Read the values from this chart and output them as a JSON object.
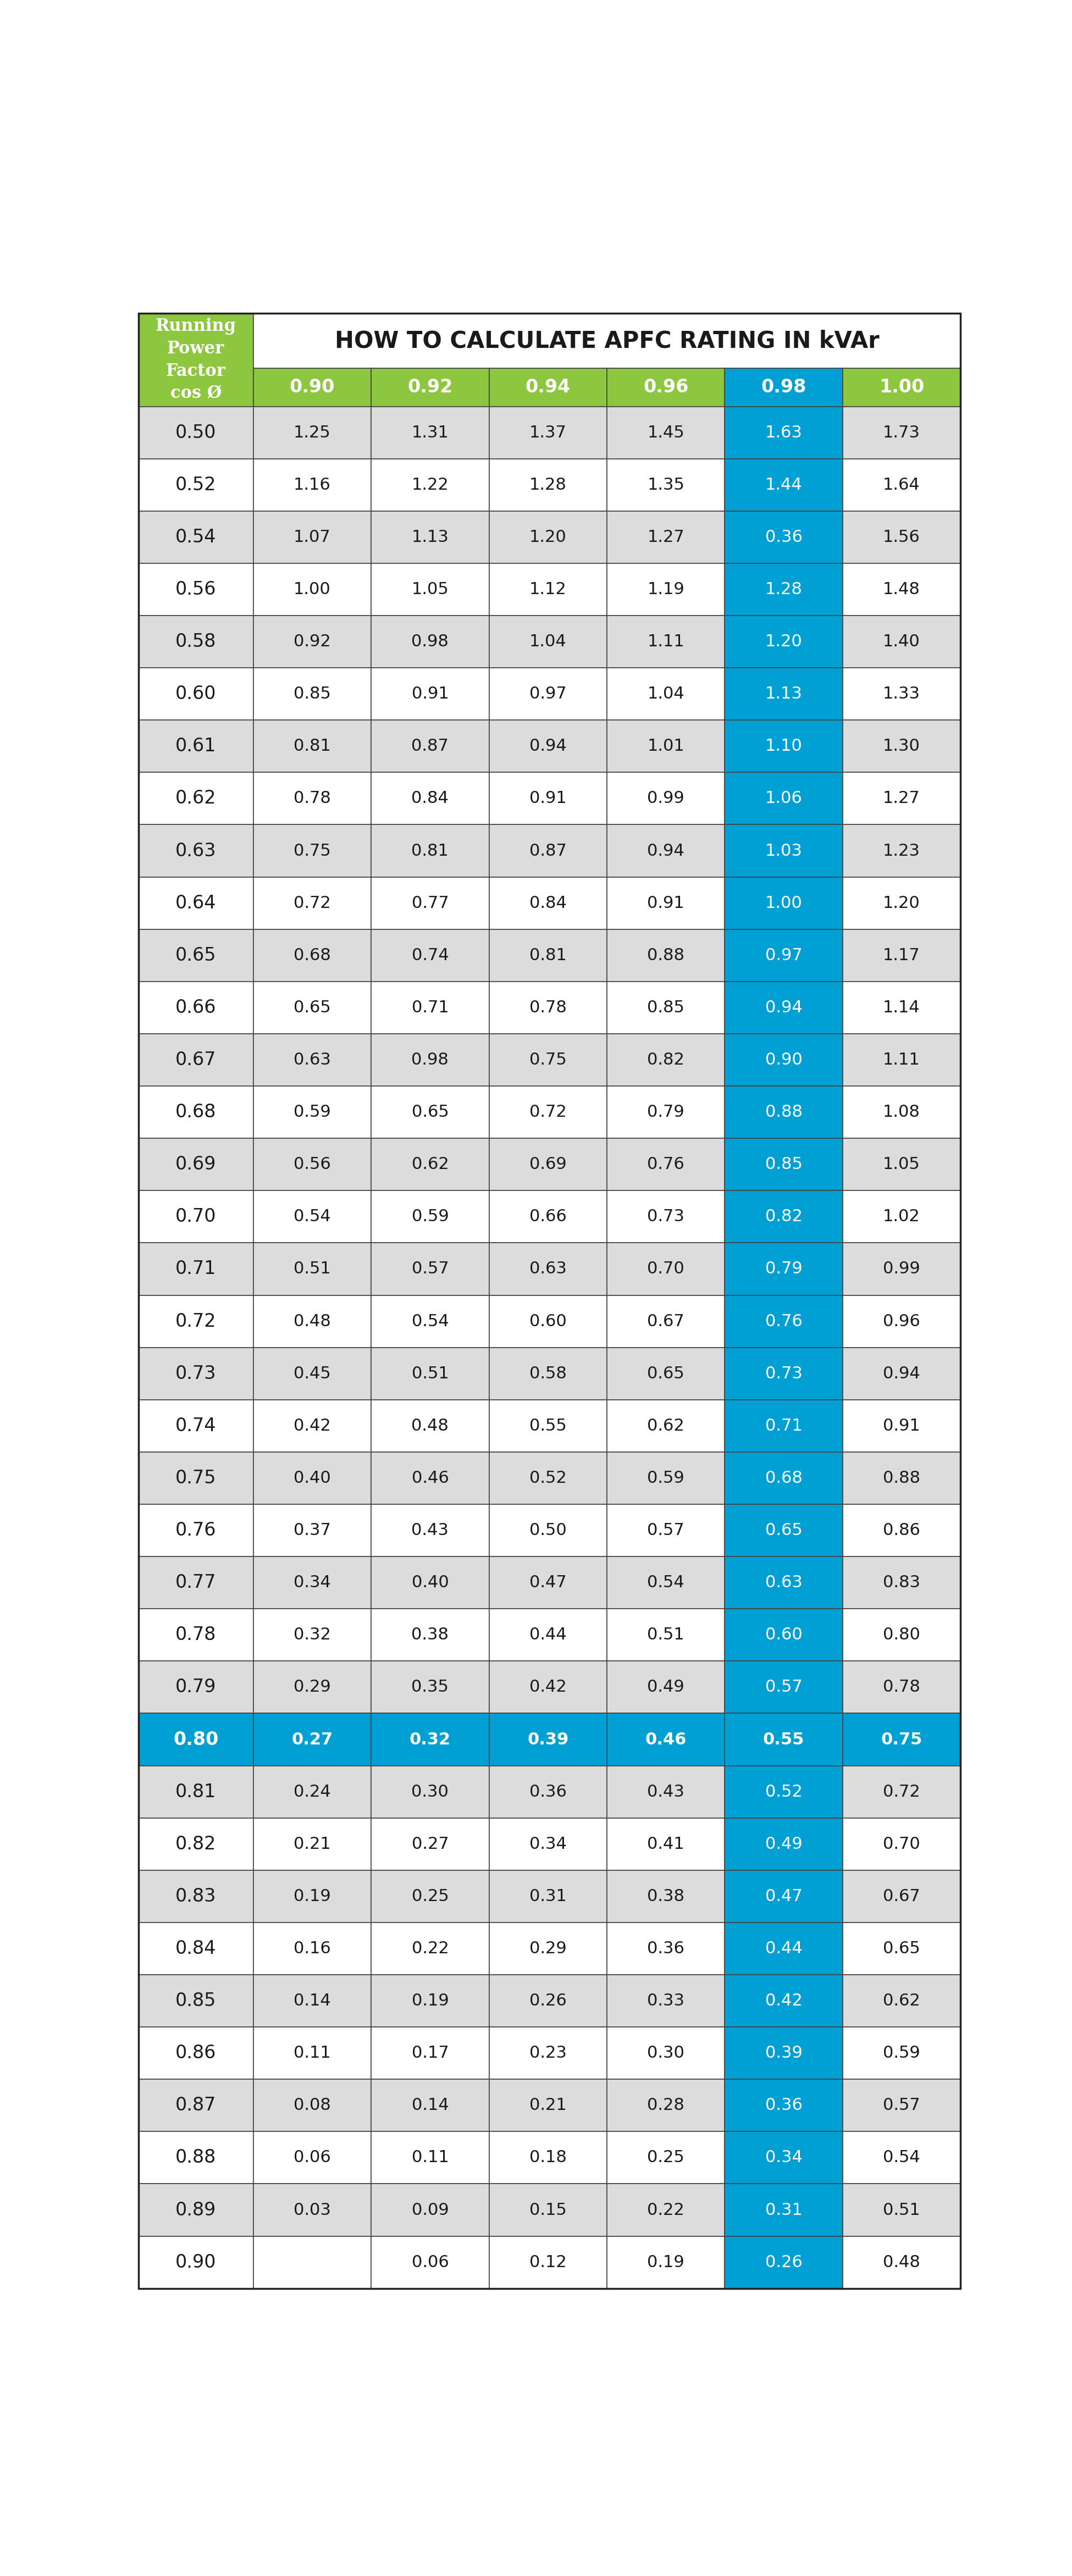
{
  "title": "HOW TO CALCULATE APFC RATING IN kVAr",
  "header_label": "Running\nPower\nFactor\ncos Ø",
  "col_headers": [
    "0.90",
    "0.92",
    "0.94",
    "0.96",
    "0.98",
    "1.00"
  ],
  "row_labels": [
    "0.50",
    "0.52",
    "0.54",
    "0.56",
    "0.58",
    "0.60",
    "0.61",
    "0.62",
    "0.63",
    "0.64",
    "0.65",
    "0.66",
    "0.67",
    "0.68",
    "0.69",
    "0.70",
    "0.71",
    "0.72",
    "0.73",
    "0.74",
    "0.75",
    "0.76",
    "0.77",
    "0.78",
    "0.79",
    "0.80",
    "0.81",
    "0.82",
    "0.83",
    "0.84",
    "0.85",
    "0.86",
    "0.87",
    "0.88",
    "0.89",
    "0.90"
  ],
  "table_data": [
    [
      "1.25",
      "1.31",
      "1.37",
      "1.45",
      "1.63",
      "1.73"
    ],
    [
      "1.16",
      "1.22",
      "1.28",
      "1.35",
      "1.44",
      "1.64"
    ],
    [
      "1.07",
      "1.13",
      "1.20",
      "1.27",
      "0.36",
      "1.56"
    ],
    [
      "1.00",
      "1.05",
      "1.12",
      "1.19",
      "1.28",
      "1.48"
    ],
    [
      "0.92",
      "0.98",
      "1.04",
      "1.11",
      "1.20",
      "1.40"
    ],
    [
      "0.85",
      "0.91",
      "0.97",
      "1.04",
      "1.13",
      "1.33"
    ],
    [
      "0.81",
      "0.87",
      "0.94",
      "1.01",
      "1.10",
      "1.30"
    ],
    [
      "0.78",
      "0.84",
      "0.91",
      "0.99",
      "1.06",
      "1.27"
    ],
    [
      "0.75",
      "0.81",
      "0.87",
      "0.94",
      "1.03",
      "1.23"
    ],
    [
      "0.72",
      "0.77",
      "0.84",
      "0.91",
      "1.00",
      "1.20"
    ],
    [
      "0.68",
      "0.74",
      "0.81",
      "0.88",
      "0.97",
      "1.17"
    ],
    [
      "0.65",
      "0.71",
      "0.78",
      "0.85",
      "0.94",
      "1.14"
    ],
    [
      "0.63",
      "0.98",
      "0.75",
      "0.82",
      "0.90",
      "1.11"
    ],
    [
      "0.59",
      "0.65",
      "0.72",
      "0.79",
      "0.88",
      "1.08"
    ],
    [
      "0.56",
      "0.62",
      "0.69",
      "0.76",
      "0.85",
      "1.05"
    ],
    [
      "0.54",
      "0.59",
      "0.66",
      "0.73",
      "0.82",
      "1.02"
    ],
    [
      "0.51",
      "0.57",
      "0.63",
      "0.70",
      "0.79",
      "0.99"
    ],
    [
      "0.48",
      "0.54",
      "0.60",
      "0.67",
      "0.76",
      "0.96"
    ],
    [
      "0.45",
      "0.51",
      "0.58",
      "0.65",
      "0.73",
      "0.94"
    ],
    [
      "0.42",
      "0.48",
      "0.55",
      "0.62",
      "0.71",
      "0.91"
    ],
    [
      "0.40",
      "0.46",
      "0.52",
      "0.59",
      "0.68",
      "0.88"
    ],
    [
      "0.37",
      "0.43",
      "0.50",
      "0.57",
      "0.65",
      "0.86"
    ],
    [
      "0.34",
      "0.40",
      "0.47",
      "0.54",
      "0.63",
      "0.83"
    ],
    [
      "0.32",
      "0.38",
      "0.44",
      "0.51",
      "0.60",
      "0.80"
    ],
    [
      "0.29",
      "0.35",
      "0.42",
      "0.49",
      "0.57",
      "0.78"
    ],
    [
      "0.27",
      "0.32",
      "0.39",
      "0.46",
      "0.55",
      "0.75"
    ],
    [
      "0.24",
      "0.30",
      "0.36",
      "0.43",
      "0.52",
      "0.72"
    ],
    [
      "0.21",
      "0.27",
      "0.34",
      "0.41",
      "0.49",
      "0.70"
    ],
    [
      "0.19",
      "0.25",
      "0.31",
      "0.38",
      "0.47",
      "0.67"
    ],
    [
      "0.16",
      "0.22",
      "0.29",
      "0.36",
      "0.44",
      "0.65"
    ],
    [
      "0.14",
      "0.19",
      "0.26",
      "0.33",
      "0.42",
      "0.62"
    ],
    [
      "0.11",
      "0.17",
      "0.23",
      "0.30",
      "0.39",
      "0.59"
    ],
    [
      "0.08",
      "0.14",
      "0.21",
      "0.28",
      "0.36",
      "0.57"
    ],
    [
      "0.06",
      "0.11",
      "0.18",
      "0.25",
      "0.34",
      "0.54"
    ],
    [
      "0.03",
      "0.09",
      "0.15",
      "0.22",
      "0.31",
      "0.51"
    ],
    [
      "",
      "0.06",
      "0.12",
      "0.19",
      "0.26",
      "0.48"
    ]
  ],
  "green_color": "#8DC63F",
  "blue_color": "#009FD4",
  "white": "#FFFFFF",
  "light_gray": "#DCDCDC",
  "text_dark": "#1A1A1A",
  "text_white": "#FFFFFF",
  "highlighted_row_index": 25,
  "col_098_index": 4,
  "n_rows": 36,
  "n_cols": 6,
  "title_fontsize": 30,
  "header_fontsize": 22,
  "col_header_fontsize": 24,
  "data_fontsize": 22,
  "row_label_fontsize": 24,
  "edge_color": "#444444",
  "edge_lw": 1.2
}
